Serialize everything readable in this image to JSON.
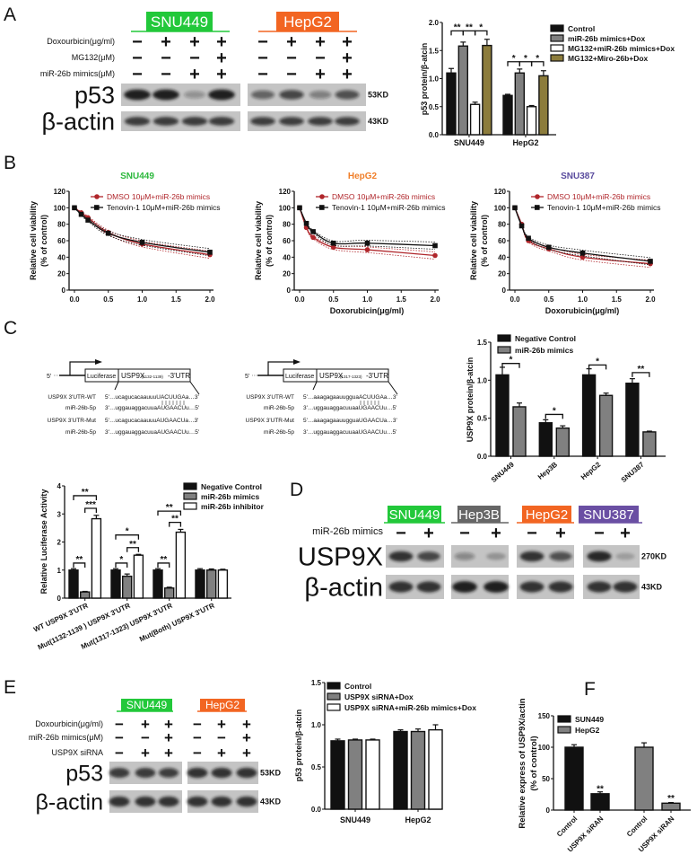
{
  "panel_letters": {
    "a": "A",
    "b": "B",
    "c": "C",
    "d": "D",
    "e": "E",
    "f": "F"
  },
  "panel_a": {
    "groups": [
      {
        "name": "SNU449",
        "color": "#22c83a"
      },
      {
        "name": "HepG2",
        "color": "#f26522"
      }
    ],
    "rows": [
      {
        "label": "Doxourbicin(μg/ml)",
        "signs": [
          "−",
          "+",
          "+",
          "+",
          "−",
          "+",
          "+",
          "+"
        ]
      },
      {
        "label": "MG132(μM)",
        "signs": [
          "−",
          "−",
          "−",
          "+",
          "−",
          "−",
          "−",
          "+"
        ]
      },
      {
        "label": "miR-26b mimics(μM)",
        "signs": [
          "−",
          "−",
          "+",
          "+",
          "−",
          "−",
          "+",
          "+"
        ]
      }
    ],
    "bands": [
      {
        "label": "p53",
        "kd": "53KD",
        "intensity": [
          0.95,
          0.95,
          0.3,
          0.95,
          0.55,
          0.7,
          0.4,
          0.65
        ]
      },
      {
        "label": "β-actin",
        "kd": "43KD",
        "intensity": [
          0.8,
          0.8,
          0.8,
          0.8,
          0.75,
          0.75,
          0.75,
          0.75
        ]
      }
    ]
  },
  "panel_c": {
    "constructs": [
      {
        "five": "5'",
        "luciferase": "Luciferase",
        "gene": "USP9X",
        "range": "(1132-1139)",
        "suffix": "-3'UTR",
        "rows": [
          {
            "label": "USP9X 3'UTR-WT",
            "seq": "5'…ucagucacaauuuUACUUGAa…3'"
          },
          {
            "label": "miR-26b-5p",
            "seq": "3'…uggauaggacuuaAUGAACUu…5'"
          },
          {
            "label": "USP9X 3'UTR-Mut",
            "seq": "5'…ucagucacaauuuAUGAACUa…3'"
          },
          {
            "label": "miR-26b-5p",
            "seq": "3'…uggauaggacuuaAUGAACUu…5'"
          }
        ]
      },
      {
        "five": "5'",
        "luciferase": "Luciferase",
        "gene": "USP9X",
        "range": "(1317-1323)",
        "suffix": "-3'UTR",
        "rows": [
          {
            "label": "USP9X 3'UTR-WT",
            "seq": "5'…aaagagaauugguaACUUGAa…3'"
          },
          {
            "label": "miR-26b-5p",
            "seq": "3'…uggauaggacuuaaUGAACUu…5'"
          },
          {
            "label": "USP9X 3'UTR-Mut",
            "seq": "5'…aaagagaauugguaUGAACUa…3'"
          },
          {
            "label": "miR-26b-5p",
            "seq": "3'…uggauaggacuuaaUGAACUu…5'"
          }
        ]
      }
    ]
  },
  "panel_d": {
    "groups": [
      {
        "name": "SNU449",
        "color": "#22c83a"
      },
      {
        "name": "Hep3B",
        "color": "#666666"
      },
      {
        "name": "HepG2",
        "color": "#f26522"
      },
      {
        "name": "SNU387",
        "color": "#6a4fa3"
      }
    ],
    "rows": [
      {
        "label": "miR-26b mimics",
        "signs": [
          "−",
          "+",
          "−",
          "+",
          "−",
          "+",
          "−",
          "+"
        ]
      }
    ],
    "bands": [
      {
        "label": "USP9X",
        "kd": "270KD",
        "intensity": [
          0.85,
          0.7,
          0.35,
          0.25,
          0.85,
          0.65,
          0.9,
          0.2
        ]
      },
      {
        "label": "β-actin",
        "kd": "43KD",
        "intensity": [
          0.85,
          0.85,
          0.95,
          0.95,
          0.85,
          0.85,
          0.85,
          0.85
        ]
      }
    ]
  },
  "panel_e": {
    "groups": [
      {
        "name": "SNU449",
        "color": "#22c83a"
      },
      {
        "name": "HepG2",
        "color": "#f26522"
      }
    ],
    "rows": [
      {
        "label": "Doxourbicin(μg/ml)",
        "signs": [
          "−",
          "+",
          "+",
          "−",
          "+",
          "+"
        ]
      },
      {
        "label": "miR-26b mimics(μM)",
        "signs": [
          "−",
          "−",
          "+",
          "−",
          "−",
          "+"
        ]
      },
      {
        "label": "USP9X siRNA",
        "signs": [
          "−",
          "+",
          "+",
          "−",
          "+",
          "+"
        ]
      }
    ],
    "bands": [
      {
        "label": "p53",
        "kd": "53KD",
        "intensity": [
          0.8,
          0.8,
          0.75,
          0.85,
          0.85,
          0.85
        ]
      },
      {
        "label": "β-actin",
        "kd": "43KD",
        "intensity": [
          0.85,
          0.85,
          0.85,
          0.85,
          0.85,
          0.85
        ]
      }
    ]
  },
  "chart_data": [
    {
      "type": "bar",
      "ylabel": "p53 protein/β-atcin",
      "ylim": [
        0,
        2.0
      ],
      "yticks": [
        "0.0",
        "0.5",
        "1.0",
        "1.5",
        "2.0"
      ],
      "legend": "right",
      "categories": [
        "SNU449",
        "HepG2"
      ],
      "series": [
        {
          "name": "Control",
          "color": "#111111",
          "values": [
            1.1,
            0.7
          ],
          "errors": [
            0.08,
            0.02
          ]
        },
        {
          "name": "miR-26b mimics+Dox",
          "color": "#808080",
          "values": [
            1.58,
            1.1
          ],
          "errors": [
            0.07,
            0.07
          ]
        },
        {
          "name": "MG132+miR-26b mimics+Dox",
          "color": "#ffffff",
          "values": [
            0.54,
            0.5
          ],
          "errors": [
            0.04,
            0.02
          ]
        },
        {
          "name": "MG132+Miro-26b+Dox",
          "color": "#8c7c3c",
          "values": [
            1.59,
            1.05
          ],
          "errors": [
            0.11,
            0.09
          ]
        }
      ],
      "annotations": [
        {
          "category": 0,
          "bars": [
            0,
            1
          ],
          "y": 1.85,
          "label": "**"
        },
        {
          "category": 0,
          "bars": [
            1,
            2
          ],
          "y": 1.85,
          "label": "**"
        },
        {
          "category": 0,
          "bars": [
            2,
            3
          ],
          "y": 1.85,
          "label": "*"
        },
        {
          "category": 1,
          "bars": [
            0,
            1
          ],
          "y": 1.3,
          "label": "*"
        },
        {
          "category": 1,
          "bars": [
            1,
            2
          ],
          "y": 1.3,
          "label": "*"
        },
        {
          "category": 1,
          "bars": [
            2,
            3
          ],
          "y": 1.3,
          "label": "*"
        }
      ]
    },
    {
      "type": "line",
      "title": "SNU449",
      "title_color": "#2db83d",
      "xlabel": "",
      "ylabel": [
        "Relative cell viability",
        "(% of control)"
      ],
      "xlim": [
        0,
        2.0
      ],
      "ylim": [
        0,
        120
      ],
      "xticks": [
        "0.0",
        "0.5",
        "1.0",
        "1.5",
        "2.0"
      ],
      "yticks": [
        "0",
        "20",
        "40",
        "60",
        "80",
        "100",
        "120"
      ],
      "x": [
        0,
        0.1,
        0.2,
        0.5,
        1.0,
        2.0
      ],
      "legend": "top-right",
      "series": [
        {
          "name": "DMSO 10μM+miR-26b mimics",
          "color": "#b0262b",
          "marker": "circle",
          "values": [
            100,
            94,
            88,
            70,
            56,
            43
          ]
        },
        {
          "name": "Tenovin-1 10μM+miR-26b mimics",
          "color": "#111111",
          "marker": "square",
          "values": [
            100,
            92,
            85,
            69,
            58,
            46
          ]
        }
      ]
    },
    {
      "type": "line",
      "title": "HepG2",
      "title_color": "#f07f2a",
      "xlabel": "Doxorubicin(μg/ml)",
      "ylabel": [
        "Relative cell viability",
        "(% of control)"
      ],
      "xlim": [
        0,
        2.0
      ],
      "ylim": [
        0,
        120
      ],
      "xticks": [
        "0.0",
        "0.5",
        "1.0",
        "1.5",
        "2.0"
      ],
      "yticks": [
        "0",
        "20",
        "40",
        "60",
        "80",
        "100",
        "120"
      ],
      "x": [
        0,
        0.1,
        0.2,
        0.5,
        1.0,
        2.0
      ],
      "legend": "top-right",
      "series": [
        {
          "name": "DMSO 10μM+miR-26b mimics",
          "color": "#b0262b",
          "marker": "circle",
          "values": [
            100,
            76,
            64,
            52,
            49,
            42
          ]
        },
        {
          "name": "Tenovin-1 10μM+miR-26b mimics",
          "color": "#111111",
          "marker": "square",
          "values": [
            100,
            81,
            71,
            57,
            57,
            54
          ]
        }
      ]
    },
    {
      "type": "line",
      "title": "SNU387",
      "title_color": "#5a4c9e",
      "xlabel": "Doxorubicin(μg/ml)",
      "ylabel": [
        "Relative cell viability",
        "(% of control)"
      ],
      "xlim": [
        0,
        2.0
      ],
      "ylim": [
        0,
        120
      ],
      "xticks": [
        "0.0",
        "0.5",
        "1.0",
        "1.5",
        "2.0"
      ],
      "yticks": [
        "0",
        "20",
        "40",
        "60",
        "80",
        "100",
        "120"
      ],
      "x": [
        0,
        0.1,
        0.2,
        0.5,
        1.0,
        2.0
      ],
      "legend": "top-right",
      "series": [
        {
          "name": "DMSO 10μM+miR-26b mimics",
          "color": "#b0262b",
          "marker": "circle",
          "values": [
            100,
            80,
            60,
            50,
            40,
            32
          ]
        },
        {
          "name": "Tenovin-1 10μM+miR-26b mimics",
          "color": "#111111",
          "marker": "square",
          "values": [
            100,
            78,
            63,
            52,
            45,
            35
          ]
        }
      ]
    },
    {
      "type": "bar",
      "ylabel": "USP9X protein/β-atcin",
      "ylim": [
        0,
        1.5
      ],
      "yticks": [
        "0.0",
        "0.5",
        "1.0",
        "1.5"
      ],
      "legend": "top",
      "categories": [
        "SNU449",
        "Hep3B",
        "HepG2",
        "SNU387"
      ],
      "series": [
        {
          "name": "Negative Control",
          "color": "#111111",
          "values": [
            1.07,
            0.44,
            1.07,
            0.96
          ],
          "errors": [
            0.1,
            0.04,
            0.08,
            0.06
          ]
        },
        {
          "name": "miR-26b mimics",
          "color": "#808080",
          "values": [
            0.65,
            0.37,
            0.8,
            0.32
          ],
          "errors": [
            0.05,
            0.03,
            0.03,
            0.01
          ]
        }
      ],
      "annotations": [
        {
          "category": 0,
          "bars": [
            0,
            1
          ],
          "y": 1.22,
          "label": "*"
        },
        {
          "category": 1,
          "bars": [
            0,
            1
          ],
          "y": 0.55,
          "label": "*"
        },
        {
          "category": 2,
          "bars": [
            0,
            1
          ],
          "y": 1.2,
          "label": "*"
        },
        {
          "category": 3,
          "bars": [
            0,
            1
          ],
          "y": 1.1,
          "label": "**"
        }
      ]
    },
    {
      "type": "bar",
      "ylabel": "Relative Luciferase Activity",
      "ylim": [
        0,
        4
      ],
      "yticks": [
        "0",
        "1",
        "2",
        "3",
        "4"
      ],
      "legend": "top-right",
      "categories": [
        "WT USP9X 3'UTR",
        "Mut(1132-1139 ) USP9X 3'UTR",
        "Mut(1317-1323) USP9X 3'UTR",
        "Mut(Both) USP9X 3'UTR"
      ],
      "series": [
        {
          "name": "Negative Control",
          "color": "#111111",
          "values": [
            1.0,
            1.0,
            1.0,
            1.0
          ],
          "errors": [
            0.05,
            0.05,
            0.05,
            0.05
          ]
        },
        {
          "name": "miR-26b mimics",
          "color": "#808080",
          "values": [
            0.22,
            0.78,
            0.36,
            1.0
          ],
          "errors": [
            0.02,
            0.08,
            0.03,
            0.04
          ]
        },
        {
          "name": "miR-26b inhibitor",
          "color": "#ffffff",
          "values": [
            2.83,
            1.53,
            2.35,
            1.0
          ],
          "errors": [
            0.12,
            0.03,
            0.1,
            0.03
          ]
        }
      ],
      "annotations": [
        {
          "category": 0,
          "bars": [
            0,
            1
          ],
          "y": 1.25,
          "label": "**"
        },
        {
          "category": 0,
          "bars": [
            1,
            2
          ],
          "y": 3.2,
          "label": "***"
        },
        {
          "category": 0,
          "bars": [
            0,
            2
          ],
          "y": 3.65,
          "label": "**"
        },
        {
          "category": 1,
          "bars": [
            0,
            1
          ],
          "y": 1.25,
          "label": "*"
        },
        {
          "category": 1,
          "bars": [
            1,
            2
          ],
          "y": 1.8,
          "label": "**"
        },
        {
          "category": 1,
          "bars": [
            0,
            2
          ],
          "y": 2.25,
          "label": "*"
        },
        {
          "category": 2,
          "bars": [
            0,
            1
          ],
          "y": 1.25,
          "label": "**"
        },
        {
          "category": 2,
          "bars": [
            1,
            2
          ],
          "y": 2.7,
          "label": "**"
        },
        {
          "category": 2,
          "bars": [
            0,
            2
          ],
          "y": 3.1,
          "label": "**"
        }
      ]
    },
    {
      "type": "bar",
      "ylabel": "p53 protein/β-atcin",
      "ylim": [
        0,
        1.5
      ],
      "yticks": [
        "0.0",
        "0.5",
        "1.0",
        "1.5"
      ],
      "legend": "top",
      "categories": [
        "SNU449",
        "HepG2"
      ],
      "series": [
        {
          "name": "Control",
          "color": "#111111",
          "values": [
            0.81,
            0.92
          ],
          "errors": [
            0.02,
            0.02
          ]
        },
        {
          "name": "USP9X siRNA+Dox",
          "color": "#808080",
          "values": [
            0.82,
            0.92
          ],
          "errors": [
            0.01,
            0.03
          ]
        },
        {
          "name": "USP9X siRNA+miR-26b mimics+Dox",
          "color": "#ffffff",
          "values": [
            0.82,
            0.94
          ],
          "errors": [
            0.01,
            0.06
          ]
        }
      ],
      "annotations": []
    },
    {
      "type": "bar",
      "ylabel": [
        "Relative express of USP9X/actin",
        "(% of control)"
      ],
      "ylim": [
        0,
        150
      ],
      "yticks": [
        "0",
        "50",
        "100",
        "150"
      ],
      "legend": "top-left",
      "categories": [
        "Control",
        "USP9X siRAN",
        "Control",
        "USP9X siRAN"
      ],
      "series": [
        {
          "name": "SUN449",
          "color": "#111111",
          "values": [
            100,
            26,
            null,
            null
          ],
          "errors": [
            4,
            3,
            null,
            null
          ]
        },
        {
          "name": "HepG2",
          "color": "#808080",
          "values": [
            null,
            null,
            100,
            11
          ],
          "errors": [
            null,
            null,
            7,
            1
          ]
        }
      ],
      "annotations": [
        {
          "category": 1,
          "bars": [
            0
          ],
          "y": 32,
          "label": "**"
        },
        {
          "category": 3,
          "bars": [
            1
          ],
          "y": 17,
          "label": "**"
        }
      ]
    }
  ]
}
